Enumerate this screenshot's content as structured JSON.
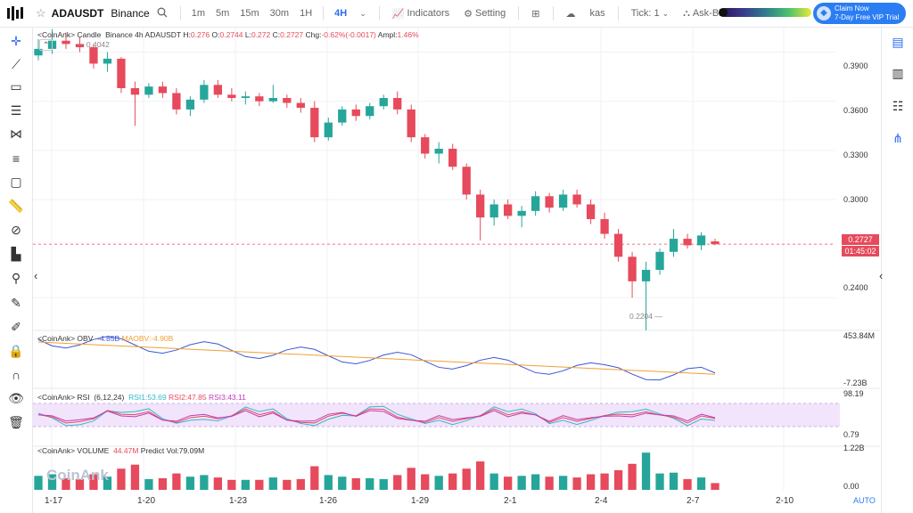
{
  "header": {
    "symbol": "ADAUSDT",
    "exchange": "Binance",
    "timeframes": [
      "1m",
      "5m",
      "15m",
      "30m",
      "1H",
      "4H"
    ],
    "active_timeframe": "4H",
    "indicators_label": "Indicators",
    "setting_label": "Setting",
    "kas_label": "kas",
    "tick_label": "Tick:",
    "tick_value": "1",
    "ask_bid_label": "Ask-Bid Cluster",
    "claim_line1": "Claim Now",
    "claim_line2": "7-Day Free VIP Trial"
  },
  "main_info": {
    "prefix": "<CoinAnk> Candle",
    "desc": "Binance 4h ADAUSDT",
    "h_label": "H:",
    "h": "0.276",
    "o_label": "O:",
    "o": "0.2744",
    "l_label": "L:",
    "l": "0.272",
    "c_label": "C:",
    "c": "0.2727",
    "chg_label": "Chg:",
    "chg": "-0.62%(-0.0017)",
    "ampl_label": "Ampl:",
    "ampl": "1.46%",
    "max_label": "0.4042",
    "min_label": "0.2204"
  },
  "price_axis": {
    "ticks": [
      "0.3900",
      "0.3600",
      "0.3300",
      "0.3000",
      "0.2400"
    ],
    "current_price": "0.2727",
    "countdown": "01:45:02"
  },
  "obv": {
    "label": "<CoinAnk> OBV",
    "value": "-4.85B",
    "ma_label": "MAOBV:",
    "ma_value": "-4.90B",
    "axis_top": "453.84M",
    "axis_bottom": "-7.23B"
  },
  "rsi": {
    "label": "<CoinAnk> RSI",
    "params": "(6,12,24)",
    "rsi1_label": "RSI1:",
    "rsi1": "53.69",
    "rsi2_label": "RSI2:",
    "rsi2": "47.85",
    "rsi3_label": "RSI3:",
    "rsi3": "43.11",
    "axis_top": "98.19",
    "axis_bottom": "0.79"
  },
  "volume": {
    "label": "<CoinAnk> VOLUME",
    "value": "44.47M",
    "predict_label": "Predict Vol:",
    "predict_value": "79.09M",
    "axis_top": "1.22B",
    "axis_bottom": "0.00"
  },
  "time_axis": [
    "1-17",
    "1-20",
    "1-23",
    "1-26",
    "1-29",
    "2-1",
    "2-4",
    "2-7",
    "2-10"
  ],
  "auto_label": "AUTO",
  "watermark": "CoinAnk",
  "colors": {
    "up": "#26a69a",
    "down": "#e64a5c",
    "accent": "#2b6bf3",
    "obv": "#3c56d6",
    "maobv": "#f0a033",
    "rsi1": "#35b8c9",
    "rsi2": "#e64a5c",
    "rsi3": "#c23bb4"
  },
  "chart_data": {
    "type": "candlestick",
    "price_range": [
      0.22,
      0.405
    ],
    "candles_approx": [
      [
        0.388,
        0.398,
        0.385,
        0.392
      ],
      [
        0.392,
        0.404,
        0.389,
        0.397
      ],
      [
        0.397,
        0.402,
        0.392,
        0.395
      ],
      [
        0.395,
        0.399,
        0.39,
        0.393
      ],
      [
        0.393,
        0.395,
        0.38,
        0.383
      ],
      [
        0.383,
        0.39,
        0.378,
        0.386
      ],
      [
        0.386,
        0.387,
        0.365,
        0.368
      ],
      [
        0.368,
        0.372,
        0.345,
        0.364
      ],
      [
        0.364,
        0.371,
        0.362,
        0.369
      ],
      [
        0.369,
        0.372,
        0.362,
        0.365
      ],
      [
        0.365,
        0.368,
        0.352,
        0.355
      ],
      [
        0.355,
        0.363,
        0.351,
        0.361
      ],
      [
        0.361,
        0.373,
        0.359,
        0.37
      ],
      [
        0.37,
        0.373,
        0.362,
        0.364
      ],
      [
        0.364,
        0.368,
        0.36,
        0.362
      ],
      [
        0.362,
        0.366,
        0.358,
        0.363
      ],
      [
        0.363,
        0.365,
        0.357,
        0.36
      ],
      [
        0.36,
        0.37,
        0.359,
        0.362
      ],
      [
        0.362,
        0.364,
        0.356,
        0.359
      ],
      [
        0.359,
        0.362,
        0.353,
        0.356
      ],
      [
        0.356,
        0.36,
        0.335,
        0.338
      ],
      [
        0.338,
        0.35,
        0.336,
        0.347
      ],
      [
        0.347,
        0.357,
        0.345,
        0.355
      ],
      [
        0.355,
        0.358,
        0.348,
        0.351
      ],
      [
        0.351,
        0.359,
        0.349,
        0.357
      ],
      [
        0.357,
        0.364,
        0.355,
        0.362
      ],
      [
        0.362,
        0.366,
        0.352,
        0.355
      ],
      [
        0.355,
        0.358,
        0.335,
        0.338
      ],
      [
        0.338,
        0.34,
        0.325,
        0.328
      ],
      [
        0.328,
        0.335,
        0.322,
        0.331
      ],
      [
        0.331,
        0.334,
        0.318,
        0.32
      ],
      [
        0.32,
        0.322,
        0.3,
        0.303
      ],
      [
        0.303,
        0.306,
        0.275,
        0.289
      ],
      [
        0.289,
        0.3,
        0.284,
        0.297
      ],
      [
        0.297,
        0.3,
        0.288,
        0.29
      ],
      [
        0.29,
        0.296,
        0.283,
        0.293
      ],
      [
        0.293,
        0.305,
        0.29,
        0.302
      ],
      [
        0.302,
        0.304,
        0.292,
        0.295
      ],
      [
        0.295,
        0.306,
        0.293,
        0.303
      ],
      [
        0.303,
        0.306,
        0.295,
        0.297
      ],
      [
        0.297,
        0.3,
        0.285,
        0.288
      ],
      [
        0.288,
        0.292,
        0.276,
        0.279
      ],
      [
        0.279,
        0.282,
        0.262,
        0.265
      ],
      [
        0.265,
        0.268,
        0.24,
        0.25
      ],
      [
        0.25,
        0.262,
        0.22,
        0.257
      ],
      [
        0.257,
        0.27,
        0.254,
        0.268
      ],
      [
        0.268,
        0.282,
        0.265,
        0.276
      ],
      [
        0.276,
        0.279,
        0.27,
        0.272
      ],
      [
        0.272,
        0.28,
        0.269,
        0.278
      ],
      [
        0.2744,
        0.276,
        0.272,
        0.2727
      ]
    ]
  }
}
